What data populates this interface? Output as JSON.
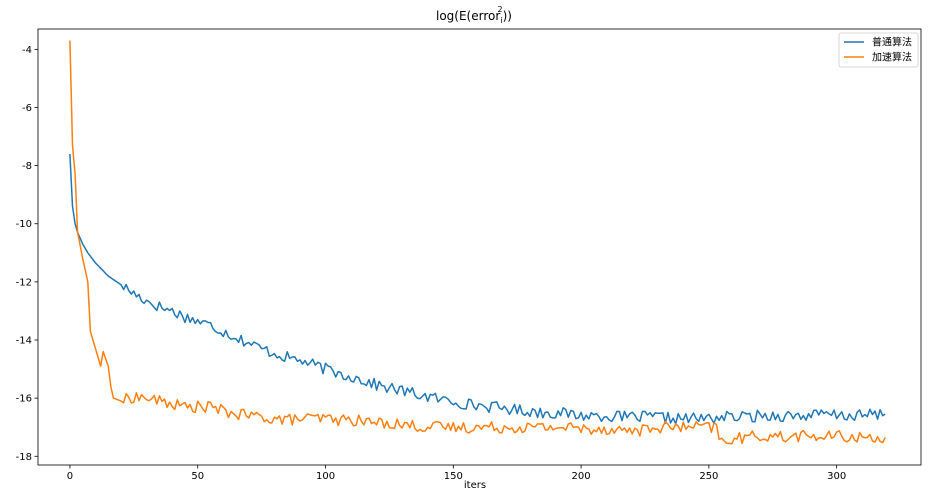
{
  "chart_data": {
    "type": "line",
    "title": "log(E(error_i^2))",
    "title_main": "log(E(error",
    "title_sub": "i",
    "title_sup": "2",
    "title_end": "))",
    "xlabel": "iters",
    "ylabel": "",
    "xlim": [
      -12.5,
      333
    ],
    "ylim": [
      -18.3,
      -3.3
    ],
    "xticks": [
      0,
      50,
      100,
      150,
      200,
      250,
      300
    ],
    "yticks": [
      -4,
      -6,
      -8,
      -10,
      -12,
      -14,
      -16,
      -18
    ],
    "xtick_labels": [
      "0",
      "50",
      "100",
      "150",
      "200",
      "250",
      "300"
    ],
    "ytick_labels": [
      "-4",
      "-6",
      "-8",
      "-10",
      "-12",
      "-14",
      "-16",
      "-18"
    ],
    "grid": false,
    "legend_position": "top-right",
    "series": [
      {
        "name": "普通算法",
        "color": "#1f77b4",
        "points": [
          [
            0,
            -7.6
          ],
          [
            1,
            -9.4
          ],
          [
            2,
            -10.0
          ],
          [
            3,
            -10.3
          ],
          [
            5,
            -10.7
          ],
          [
            7,
            -11.0
          ],
          [
            10,
            -11.35
          ],
          [
            15,
            -11.8
          ],
          [
            20,
            -12.1
          ],
          [
            25,
            -12.4
          ],
          [
            30,
            -12.65
          ],
          [
            35,
            -12.85
          ],
          [
            40,
            -13.0
          ],
          [
            45,
            -13.2
          ],
          [
            50,
            -13.35
          ],
          [
            55,
            -13.5
          ],
          [
            60,
            -13.7
          ],
          [
            65,
            -13.9
          ],
          [
            70,
            -14.1
          ],
          [
            75,
            -14.3
          ],
          [
            80,
            -14.45
          ],
          [
            85,
            -14.6
          ],
          [
            90,
            -14.7
          ],
          [
            95,
            -14.85
          ],
          [
            100,
            -15.0
          ],
          [
            105,
            -15.15
          ],
          [
            110,
            -15.25
          ],
          [
            115,
            -15.4
          ],
          [
            120,
            -15.55
          ],
          [
            125,
            -15.65
          ],
          [
            130,
            -15.75
          ],
          [
            135,
            -15.85
          ],
          [
            140,
            -15.95
          ],
          [
            145,
            -16.05
          ],
          [
            150,
            -16.1
          ],
          [
            155,
            -16.2
          ],
          [
            160,
            -16.25
          ],
          [
            165,
            -16.3
          ],
          [
            170,
            -16.35
          ],
          [
            175,
            -16.4
          ],
          [
            180,
            -16.45
          ],
          [
            185,
            -16.5
          ],
          [
            190,
            -16.5
          ],
          [
            195,
            -16.55
          ],
          [
            200,
            -16.6
          ],
          [
            205,
            -16.6
          ],
          [
            210,
            -16.6
          ],
          [
            215,
            -16.65
          ],
          [
            220,
            -16.65
          ],
          [
            225,
            -16.65
          ],
          [
            230,
            -16.65
          ],
          [
            235,
            -16.7
          ],
          [
            240,
            -16.7
          ],
          [
            245,
            -16.7
          ],
          [
            250,
            -16.7
          ],
          [
            255,
            -16.65
          ],
          [
            260,
            -16.65
          ],
          [
            265,
            -16.65
          ],
          [
            270,
            -16.6
          ],
          [
            275,
            -16.6
          ],
          [
            280,
            -16.6
          ],
          [
            285,
            -16.6
          ],
          [
            290,
            -16.6
          ],
          [
            295,
            -16.55
          ],
          [
            300,
            -16.6
          ],
          [
            305,
            -16.6
          ],
          [
            310,
            -16.6
          ],
          [
            315,
            -16.55
          ],
          [
            319,
            -16.55
          ]
        ]
      },
      {
        "name": "加速算法",
        "color": "#ff7f0e",
        "points": [
          [
            0,
            -3.7
          ],
          [
            1,
            -7.3
          ],
          [
            2,
            -8.3
          ],
          [
            3,
            -10.3
          ],
          [
            5,
            -11.2
          ],
          [
            7,
            -12.0
          ],
          [
            8,
            -13.7
          ],
          [
            10,
            -14.3
          ],
          [
            12,
            -14.9
          ],
          [
            13,
            -14.4
          ],
          [
            15,
            -14.9
          ],
          [
            16,
            -15.6
          ],
          [
            17,
            -16.0
          ],
          [
            20,
            -16.1
          ],
          [
            25,
            -15.95
          ],
          [
            30,
            -16.0
          ],
          [
            35,
            -16.1
          ],
          [
            40,
            -16.2
          ],
          [
            45,
            -16.3
          ],
          [
            50,
            -16.3
          ],
          [
            55,
            -16.3
          ],
          [
            60,
            -16.45
          ],
          [
            65,
            -16.55
          ],
          [
            70,
            -16.6
          ],
          [
            75,
            -16.65
          ],
          [
            80,
            -16.7
          ],
          [
            85,
            -16.75
          ],
          [
            90,
            -16.7
          ],
          [
            95,
            -16.7
          ],
          [
            100,
            -16.7
          ],
          [
            105,
            -16.75
          ],
          [
            110,
            -16.75
          ],
          [
            115,
            -16.8
          ],
          [
            120,
            -16.85
          ],
          [
            125,
            -16.85
          ],
          [
            130,
            -16.9
          ],
          [
            135,
            -16.95
          ],
          [
            140,
            -17.0
          ],
          [
            145,
            -17.0
          ],
          [
            150,
            -17.0
          ],
          [
            155,
            -17.0
          ],
          [
            160,
            -17.0
          ],
          [
            165,
            -17.0
          ],
          [
            170,
            -17.0
          ],
          [
            175,
            -17.0
          ],
          [
            180,
            -17.0
          ],
          [
            185,
            -17.0
          ],
          [
            190,
            -17.0
          ],
          [
            195,
            -17.0
          ],
          [
            200,
            -17.05
          ],
          [
            205,
            -17.05
          ],
          [
            210,
            -17.05
          ],
          [
            215,
            -17.1
          ],
          [
            220,
            -17.1
          ],
          [
            225,
            -17.1
          ],
          [
            230,
            -17.0
          ],
          [
            235,
            -17.0
          ],
          [
            240,
            -17.0
          ],
          [
            245,
            -17.0
          ],
          [
            250,
            -17.0
          ],
          [
            253,
            -17.0
          ],
          [
            254,
            -17.4
          ],
          [
            255,
            -17.5
          ],
          [
            260,
            -17.4
          ],
          [
            265,
            -17.35
          ],
          [
            270,
            -17.3
          ],
          [
            275,
            -17.3
          ],
          [
            280,
            -17.35
          ],
          [
            285,
            -17.3
          ],
          [
            290,
            -17.3
          ],
          [
            295,
            -17.35
          ],
          [
            300,
            -17.3
          ],
          [
            305,
            -17.35
          ],
          [
            310,
            -17.35
          ],
          [
            315,
            -17.35
          ],
          [
            319,
            -17.35
          ]
        ]
      }
    ]
  }
}
